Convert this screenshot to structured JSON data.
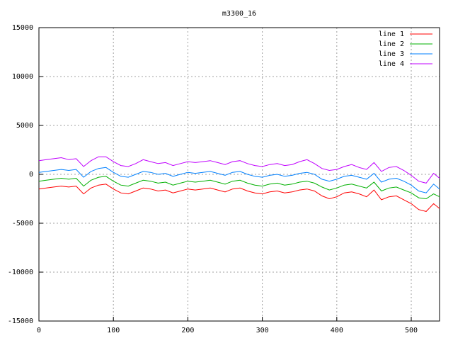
{
  "chart_data": {
    "type": "line",
    "title": "m3300_16",
    "x": [
      0,
      10,
      20,
      30,
      40,
      50,
      60,
      70,
      80,
      90,
      100,
      110,
      120,
      130,
      140,
      150,
      160,
      170,
      180,
      190,
      200,
      210,
      220,
      230,
      240,
      250,
      260,
      270,
      280,
      290,
      300,
      310,
      320,
      330,
      340,
      350,
      360,
      370,
      380,
      390,
      400,
      410,
      420,
      430,
      440,
      450,
      460,
      470,
      480,
      490,
      500,
      510,
      520,
      530,
      538
    ],
    "series": [
      {
        "name": "line 1",
        "color": "#ff0000",
        "values": [
          -1500,
          -1400,
          -1300,
          -1200,
          -1300,
          -1200,
          -2000,
          -1400,
          -1100,
          -1000,
          -1500,
          -1900,
          -2000,
          -1700,
          -1400,
          -1500,
          -1700,
          -1600,
          -1900,
          -1700,
          -1500,
          -1600,
          -1500,
          -1400,
          -1600,
          -1800,
          -1500,
          -1400,
          -1700,
          -1900,
          -2000,
          -1800,
          -1700,
          -1900,
          -1800,
          -1600,
          -1500,
          -1700,
          -2200,
          -2500,
          -2300,
          -1900,
          -1800,
          -2000,
          -2300,
          -1600,
          -2600,
          -2300,
          -2200,
          -2600,
          -3000,
          -3600,
          -3800,
          -3000,
          -3500
        ]
      },
      {
        "name": "line 2",
        "color": "#00b000",
        "values": [
          -700,
          -600,
          -500,
          -400,
          -500,
          -400,
          -1200,
          -600,
          -300,
          -200,
          -700,
          -1100,
          -1200,
          -900,
          -600,
          -700,
          -900,
          -800,
          -1100,
          -900,
          -700,
          -800,
          -700,
          -600,
          -800,
          -1000,
          -700,
          -600,
          -900,
          -1100,
          -1200,
          -1000,
          -900,
          -1100,
          -1000,
          -800,
          -700,
          -900,
          -1300,
          -1600,
          -1400,
          -1100,
          -1000,
          -1200,
          -1400,
          -800,
          -1700,
          -1400,
          -1300,
          -1600,
          -1900,
          -2400,
          -2500,
          -2000,
          -2300
        ]
      },
      {
        "name": "line 3",
        "color": "#0080ff",
        "values": [
          200,
          300,
          400,
          500,
          400,
          500,
          -300,
          300,
          600,
          700,
          200,
          -200,
          -300,
          0,
          300,
          200,
          0,
          100,
          -200,
          0,
          200,
          100,
          200,
          300,
          100,
          -100,
          200,
          300,
          0,
          -200,
          -300,
          -100,
          0,
          -200,
          -100,
          100,
          200,
          0,
          -500,
          -700,
          -500,
          -200,
          -100,
          -300,
          -500,
          100,
          -800,
          -500,
          -400,
          -700,
          -1100,
          -1700,
          -1900,
          -1000,
          -1500
        ]
      },
      {
        "name": "line 4",
        "color": "#c000ff",
        "values": [
          1400,
          1500,
          1600,
          1700,
          1500,
          1600,
          800,
          1400,
          1800,
          1800,
          1300,
          900,
          800,
          1100,
          1500,
          1300,
          1100,
          1200,
          900,
          1100,
          1300,
          1200,
          1300,
          1400,
          1200,
          1000,
          1300,
          1400,
          1100,
          900,
          800,
          1000,
          1100,
          900,
          1000,
          1300,
          1500,
          1100,
          600,
          400,
          500,
          800,
          1000,
          700,
          500,
          1200,
          300,
          700,
          800,
          400,
          -100,
          -700,
          -900,
          100,
          -400
        ]
      }
    ],
    "xlim": [
      0,
      538
    ],
    "ylim": [
      -15000,
      15000
    ],
    "xticks": [
      0,
      100,
      200,
      300,
      400,
      500
    ],
    "yticks": [
      -15000,
      -10000,
      -5000,
      0,
      5000,
      10000,
      15000
    ],
    "grid": true,
    "legend": "top-right"
  }
}
